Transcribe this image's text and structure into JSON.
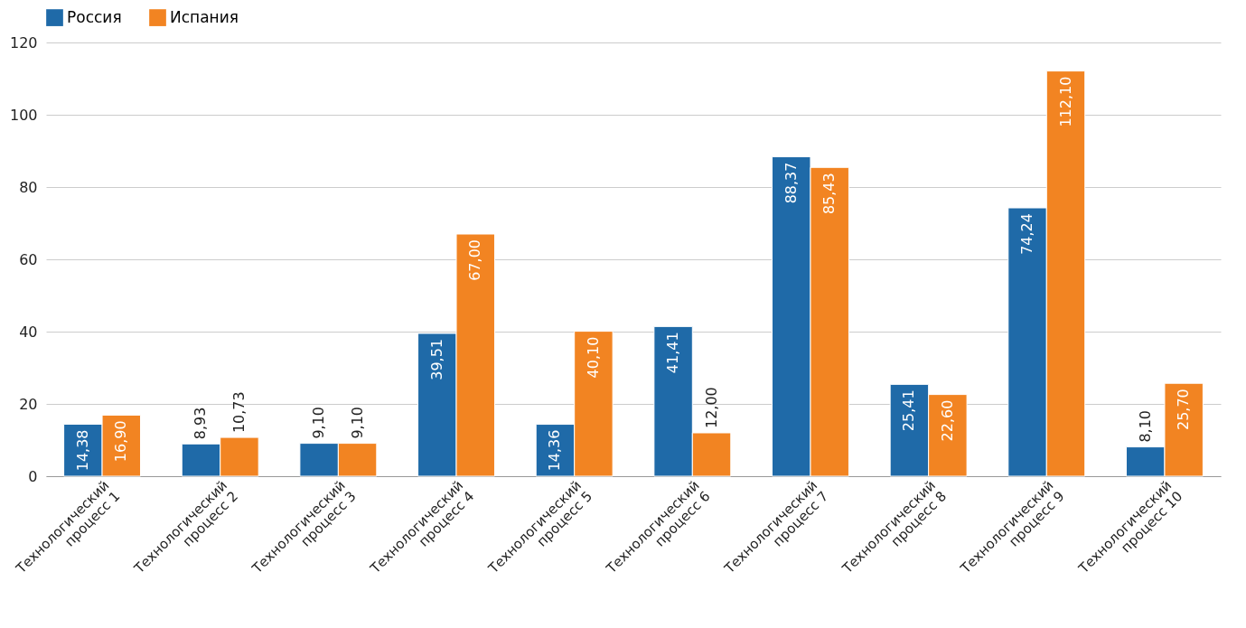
{
  "chart_data": {
    "type": "bar",
    "categories": [
      "Технологический процесс 1",
      "Технологический процесс 2",
      "Технологический процесс 3",
      "Технологический процесс 4",
      "Технологический процесс 5",
      "Технологический процесс 6",
      "Технологический процесс 7",
      "Технологический процесс 8",
      "Технологический процесс 9",
      "Технологический процесс 10"
    ],
    "series": [
      {
        "name": "Россия",
        "color": "#1f6aa8",
        "values": [
          14.38,
          8.93,
          9.1,
          39.51,
          14.36,
          41.41,
          88.37,
          25.41,
          74.24,
          8.1
        ],
        "value_labels": [
          "14,38",
          "8,93",
          "9,10",
          "39,51",
          "14,36",
          "41,41",
          "88,37",
          "25,41",
          "74,24",
          "8,10"
        ]
      },
      {
        "name": "Испания",
        "color": "#f28422",
        "values": [
          16.9,
          10.73,
          9.1,
          67.0,
          40.1,
          12.0,
          85.43,
          22.6,
          112.1,
          25.7
        ],
        "value_labels": [
          "16,90",
          "10,73",
          "9,10",
          "67,00",
          "40,10",
          "12,00",
          "85,43",
          "22,60",
          "112,10",
          "25,70"
        ]
      }
    ],
    "ylim": [
      0,
      120
    ],
    "yticks": [
      0,
      20,
      40,
      60,
      80,
      100,
      120
    ],
    "grid": "y",
    "legend": "top"
  }
}
